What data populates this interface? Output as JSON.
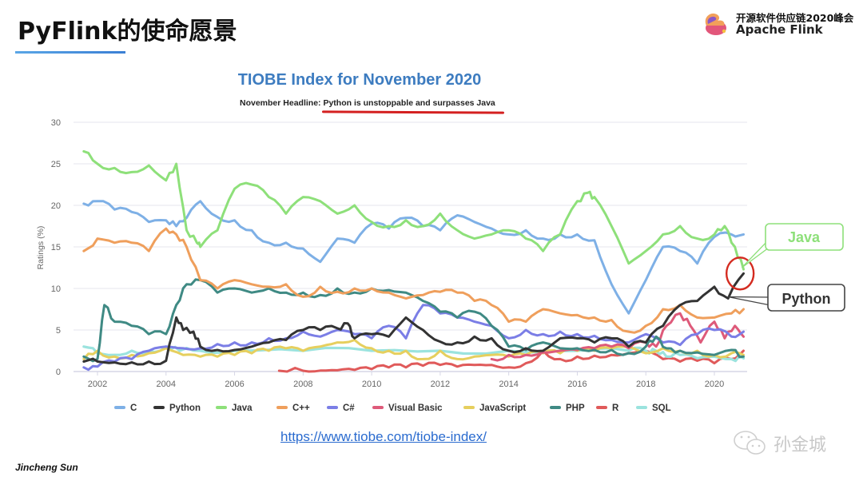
{
  "slide": {
    "title": "PyFlink的使命愿景",
    "author": "Jincheng Sun",
    "url": "https://www.tiobe.com/tiobe-index/",
    "watermark": "孙金城",
    "accent_color": "#4a90e2"
  },
  "brand": {
    "line1": "开源软件供应链2020峰会",
    "line2": "Apache Flink",
    "logo_icon": "flink-squirrel-logo"
  },
  "chart_data": {
    "type": "line",
    "title": "TIOBE Index for November 2020",
    "subtitle_prefix": "November Headline: ",
    "subtitle_headline": "Python is unstoppable and surpasses Java",
    "xlabel": "",
    "ylabel": "Ratings (%)",
    "xlim": [
      2001.5,
      2021.0
    ],
    "ylim": [
      0,
      30
    ],
    "yticks": [
      "0",
      "5",
      "10",
      "15",
      "20",
      "25",
      "30"
    ],
    "xticks": [
      "2002",
      "2004",
      "2006",
      "2008",
      "2010",
      "2012",
      "2014",
      "2016",
      "2018",
      "2020"
    ],
    "grid": true,
    "legend_position": "bottom",
    "annotations": [
      {
        "label": "Java",
        "color": "#8ee07a",
        "points_to": [
          2020.8,
          12.5
        ]
      },
      {
        "label": "Python",
        "color": "#333333",
        "points_to": [
          2020.4,
          8.8
        ]
      }
    ],
    "highlight_circle_at": [
      2020.75,
      11.8
    ],
    "series": [
      {
        "name": "C",
        "color": "#7eb0e6",
        "x": [
          2001.6,
          2002.0,
          2002.5,
          2003.0,
          2003.5,
          2004.0,
          2004.3,
          2004.6,
          2005.0,
          2005.5,
          2006.0,
          2006.5,
          2007.0,
          2007.5,
          2008.0,
          2008.5,
          2009.0,
          2009.5,
          2010.0,
          2010.5,
          2011.0,
          2011.5,
          2012.0,
          2012.5,
          2013.0,
          2013.5,
          2014.0,
          2014.5,
          2015.0,
          2015.5,
          2016.0,
          2016.5,
          2017.0,
          2017.5,
          2018.0,
          2018.5,
          2019.0,
          2019.5,
          2020.0,
          2020.5,
          2020.85
        ],
        "y": [
          20.2,
          20.5,
          19.5,
          19.2,
          18.0,
          18.2,
          17.5,
          18.5,
          20.5,
          18.6,
          18.2,
          17.0,
          15.5,
          15.5,
          14.8,
          13.2,
          16.0,
          15.5,
          17.8,
          17.2,
          18.5,
          17.5,
          17.0,
          18.8,
          18.0,
          17.2,
          16.5,
          17.0,
          16.0,
          16.5,
          16.5,
          15.8,
          10.5,
          7.0,
          11.0,
          15.0,
          14.5,
          13.0,
          16.2,
          16.5,
          16.5
        ]
      },
      {
        "name": "Python",
        "color": "#333333",
        "x": [
          2001.6,
          2002.0,
          2002.5,
          2003.0,
          2003.5,
          2004.0,
          2004.3,
          2004.5,
          2004.8,
          2005.0,
          2005.5,
          2006.0,
          2006.5,
          2007.0,
          2007.5,
          2008.0,
          2008.5,
          2009.0,
          2009.3,
          2009.5,
          2010.0,
          2010.5,
          2011.0,
          2011.5,
          2012.0,
          2012.5,
          2013.0,
          2013.5,
          2014.0,
          2014.5,
          2015.0,
          2015.5,
          2016.0,
          2016.5,
          2017.0,
          2017.5,
          2018.0,
          2018.5,
          2019.0,
          2019.5,
          2020.0,
          2020.4,
          2020.85
        ],
        "y": [
          1.2,
          1.2,
          1.1,
          1.1,
          1.2,
          1.3,
          6.5,
          5.0,
          4.8,
          3.0,
          2.6,
          2.6,
          3.0,
          3.5,
          3.8,
          5.0,
          5.0,
          5.2,
          5.8,
          4.0,
          4.5,
          4.2,
          6.5,
          5.0,
          3.6,
          3.5,
          4.2,
          4.0,
          2.5,
          2.8,
          2.5,
          4.0,
          4.0,
          3.5,
          4.0,
          3.0,
          3.5,
          5.5,
          8.0,
          8.5,
          10.2,
          8.8,
          11.8
        ]
      },
      {
        "name": "Java",
        "color": "#8ee07a",
        "x": [
          2001.6,
          2002.0,
          2002.5,
          2003.0,
          2003.5,
          2004.0,
          2004.3,
          2004.6,
          2004.9,
          2005.0,
          2005.5,
          2006.0,
          2006.5,
          2007.0,
          2007.5,
          2008.0,
          2008.5,
          2009.0,
          2009.5,
          2010.0,
          2010.5,
          2011.0,
          2011.5,
          2012.0,
          2012.5,
          2013.0,
          2013.5,
          2014.0,
          2014.5,
          2015.0,
          2015.5,
          2016.0,
          2016.3,
          2016.5,
          2017.0,
          2017.5,
          2018.0,
          2018.5,
          2019.0,
          2019.5,
          2020.0,
          2020.3,
          2020.6,
          2020.85
        ],
        "y": [
          26.5,
          25.0,
          24.5,
          24.0,
          24.8,
          23.0,
          25.0,
          17.0,
          15.5,
          15.0,
          17.0,
          22.0,
          22.5,
          21.0,
          19.0,
          21.0,
          20.5,
          19.0,
          20.0,
          18.0,
          17.5,
          18.2,
          17.5,
          19.0,
          17.0,
          16.0,
          16.5,
          17.0,
          16.0,
          14.5,
          16.5,
          20.5,
          21.5,
          21.0,
          17.5,
          13.0,
          14.5,
          16.5,
          17.5,
          16.0,
          16.5,
          17.5,
          15.0,
          12.3
        ]
      },
      {
        "name": "C++",
        "color": "#ef9f5c",
        "x": [
          2001.6,
          2002.0,
          2002.5,
          2003.0,
          2003.5,
          2004.0,
          2004.3,
          2004.6,
          2005.0,
          2005.5,
          2006.0,
          2006.5,
          2007.0,
          2007.5,
          2008.0,
          2008.5,
          2009.0,
          2009.5,
          2010.0,
          2010.5,
          2011.0,
          2011.5,
          2012.0,
          2012.5,
          2013.0,
          2013.5,
          2014.0,
          2014.5,
          2015.0,
          2015.5,
          2016.0,
          2016.5,
          2017.0,
          2017.5,
          2018.0,
          2018.5,
          2019.0,
          2019.5,
          2020.0,
          2020.5,
          2020.85
        ],
        "y": [
          14.5,
          16.0,
          15.5,
          15.5,
          14.5,
          17.2,
          16.5,
          15.0,
          11.0,
          10.0,
          11.0,
          10.5,
          10.2,
          10.5,
          9.0,
          10.2,
          9.6,
          10.0,
          10.0,
          9.5,
          8.8,
          9.2,
          9.6,
          9.5,
          8.5,
          8.0,
          6.0,
          6.0,
          7.5,
          7.0,
          6.8,
          6.5,
          6.2,
          4.8,
          5.5,
          7.5,
          8.0,
          6.5,
          6.5,
          7.0,
          7.5
        ]
      },
      {
        "name": "C#",
        "color": "#7b7ee6",
        "x": [
          2001.6,
          2002.0,
          2002.5,
          2003.0,
          2003.5,
          2004.0,
          2004.5,
          2005.0,
          2005.5,
          2006.0,
          2006.5,
          2007.0,
          2007.5,
          2008.0,
          2008.5,
          2009.0,
          2009.5,
          2010.0,
          2010.5,
          2011.0,
          2011.5,
          2012.0,
          2012.5,
          2013.0,
          2013.5,
          2014.0,
          2014.5,
          2015.0,
          2015.5,
          2016.0,
          2016.5,
          2017.0,
          2017.5,
          2018.0,
          2018.5,
          2019.0,
          2019.5,
          2020.0,
          2020.5,
          2020.85
        ],
        "y": [
          0.5,
          0.6,
          1.2,
          1.5,
          2.5,
          3.0,
          2.8,
          2.8,
          3.3,
          3.5,
          3.5,
          4.0,
          4.0,
          4.8,
          4.2,
          5.0,
          4.5,
          4.0,
          5.5,
          4.0,
          8.0,
          7.0,
          6.5,
          6.0,
          5.5,
          4.0,
          5.0,
          4.5,
          4.8,
          4.5,
          4.3,
          3.8,
          3.5,
          4.5,
          3.5,
          3.2,
          4.5,
          5.0,
          4.2,
          4.8
        ]
      },
      {
        "name": "Visual Basic",
        "color": "#de5a7a",
        "x": [
          2013.5,
          2014.0,
          2014.5,
          2015.0,
          2015.5,
          2016.0,
          2016.5,
          2017.0,
          2017.5,
          2018.0,
          2018.3,
          2018.6,
          2019.0,
          2019.3,
          2019.6,
          2020.0,
          2020.3,
          2020.6,
          2020.85
        ],
        "y": [
          1.5,
          2.0,
          2.0,
          2.3,
          2.5,
          2.6,
          2.8,
          3.0,
          2.8,
          3.5,
          3.0,
          5.5,
          7.0,
          5.5,
          3.5,
          6.0,
          4.0,
          5.5,
          4.2
        ]
      },
      {
        "name": "JavaScript",
        "color": "#e6cf5e",
        "x": [
          2001.6,
          2002.0,
          2002.5,
          2003.0,
          2003.5,
          2004.0,
          2004.5,
          2005.0,
          2005.5,
          2006.0,
          2006.5,
          2007.0,
          2007.5,
          2008.0,
          2008.5,
          2009.0,
          2009.5,
          2010.0,
          2010.5,
          2011.0,
          2011.5,
          2012.0,
          2012.5,
          2013.0,
          2013.5,
          2014.0,
          2014.5,
          2015.0,
          2015.5,
          2016.0,
          2016.5,
          2017.0,
          2017.5,
          2018.0,
          2018.5,
          2019.0,
          2019.5,
          2020.0,
          2020.5,
          2020.85
        ],
        "y": [
          1.5,
          2.5,
          1.8,
          2.0,
          2.2,
          2.8,
          2.0,
          1.8,
          1.8,
          2.0,
          2.2,
          2.5,
          2.8,
          2.5,
          3.0,
          3.5,
          3.8,
          2.8,
          2.5,
          2.5,
          1.5,
          2.5,
          1.5,
          1.8,
          2.0,
          1.8,
          2.0,
          2.2,
          2.2,
          2.5,
          2.5,
          2.8,
          3.0,
          2.2,
          2.8,
          2.5,
          2.5,
          2.0,
          2.2,
          2.0
        ]
      },
      {
        "name": "PHP",
        "color": "#3f8a84",
        "x": [
          2001.6,
          2002.0,
          2002.2,
          2002.5,
          2003.0,
          2003.5,
          2004.0,
          2004.3,
          2004.6,
          2005.0,
          2005.5,
          2006.0,
          2006.5,
          2007.0,
          2007.5,
          2008.0,
          2008.5,
          2009.0,
          2009.5,
          2010.0,
          2010.5,
          2011.0,
          2011.5,
          2012.0,
          2012.5,
          2013.0,
          2013.5,
          2014.0,
          2014.5,
          2015.0,
          2015.5,
          2016.0,
          2016.5,
          2017.0,
          2017.5,
          2018.0,
          2018.3,
          2018.6,
          2019.0,
          2019.5,
          2020.0,
          2020.5,
          2020.85
        ],
        "y": [
          1.8,
          1.5,
          8.0,
          6.0,
          5.5,
          4.5,
          4.5,
          8.0,
          10.5,
          11.0,
          9.5,
          10.0,
          9.5,
          10.0,
          9.5,
          9.5,
          9.2,
          10.0,
          9.5,
          10.0,
          9.8,
          9.5,
          8.5,
          7.2,
          6.5,
          7.2,
          5.5,
          3.0,
          2.6,
          3.5,
          2.8,
          2.8,
          2.6,
          2.6,
          2.2,
          3.0,
          4.2,
          2.8,
          2.5,
          2.3,
          2.0,
          2.6,
          1.8
        ]
      },
      {
        "name": "R",
        "color": "#e05a5a",
        "x": [
          2007.3,
          2008.0,
          2008.5,
          2009.0,
          2009.5,
          2010.0,
          2010.5,
          2011.0,
          2011.5,
          2012.0,
          2012.5,
          2013.0,
          2013.5,
          2014.0,
          2014.5,
          2015.0,
          2015.5,
          2016.0,
          2016.5,
          2017.0,
          2017.5,
          2018.0,
          2018.5,
          2019.0,
          2019.5,
          2020.0,
          2020.5,
          2020.85
        ],
        "y": [
          0.1,
          0.1,
          0.12,
          0.15,
          0.2,
          0.3,
          0.5,
          0.5,
          0.7,
          0.8,
          0.6,
          0.8,
          0.8,
          0.5,
          1.0,
          2.5,
          1.5,
          1.8,
          1.9,
          2.0,
          2.2,
          2.5,
          1.5,
          1.2,
          1.3,
          1.0,
          1.5,
          2.5
        ]
      },
      {
        "name": "SQL",
        "color": "#9be3de",
        "x": [
          2001.6,
          2002.0,
          2002.5,
          2003.0,
          2003.5,
          2004.0,
          2004.4,
          2005.0,
          2006.0,
          2008.0,
          2010.0,
          2012.0,
          2014.0,
          2016.0,
          2017.5,
          2018.0,
          2018.3,
          2018.6,
          2019.0,
          2019.5,
          2020.0,
          2020.5,
          2020.85
        ],
        "y": [
          3.0,
          2.2,
          2.0,
          2.5,
          2.5,
          3.0,
          2.5,
          2.5,
          2.5,
          2.5,
          2.5,
          2.5,
          2.5,
          2.5,
          2.5,
          2.5,
          2.5,
          1.8,
          2.0,
          1.6,
          1.8,
          1.5,
          1.6
        ]
      }
    ]
  }
}
